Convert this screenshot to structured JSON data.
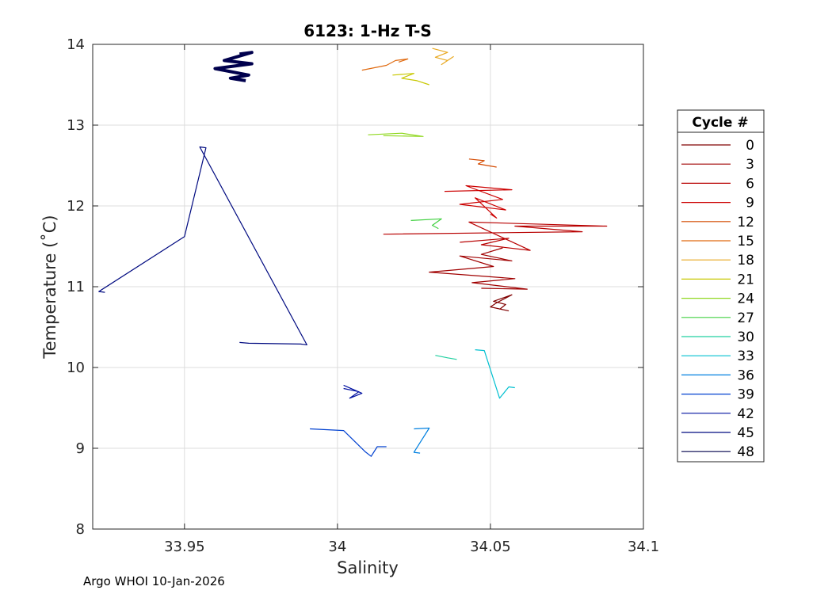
{
  "chart_data": {
    "type": "line",
    "title": "6123: 1-Hz T-S",
    "xlabel": "Salinity",
    "ylabel": "Temperature (˚C)",
    "xlim": [
      33.92,
      34.1
    ],
    "ylim": [
      8,
      14
    ],
    "xticks": [
      33.95,
      34,
      34.05,
      34.1
    ],
    "xtick_labels": [
      "33.95",
      "34",
      "34.05",
      "34.1"
    ],
    "yticks": [
      8,
      9,
      10,
      11,
      12,
      13,
      14
    ],
    "ytick_labels": [
      "8",
      "9",
      "10",
      "11",
      "12",
      "13",
      "14"
    ],
    "grid": true,
    "legend": {
      "title": "Cycle #",
      "placement": "outside-right"
    },
    "series": [
      {
        "name": "0",
        "color": "#800000",
        "points": [
          [
            34.053,
            10.72
          ],
          [
            34.055,
            10.78
          ],
          [
            34.051,
            10.82
          ],
          [
            34.054,
            10.86
          ],
          [
            34.057,
            10.9
          ],
          [
            34.052,
            10.8
          ],
          [
            34.05,
            10.75
          ],
          [
            34.056,
            10.7
          ]
        ]
      },
      {
        "name": "3",
        "color": "#a00000",
        "points": [
          [
            34.047,
            10.98
          ],
          [
            34.062,
            10.97
          ],
          [
            34.044,
            11.05
          ],
          [
            34.058,
            11.1
          ],
          [
            34.03,
            11.18
          ],
          [
            34.051,
            11.25
          ],
          [
            34.04,
            11.38
          ],
          [
            34.057,
            11.32
          ],
          [
            34.047,
            11.4
          ],
          [
            34.054,
            11.48
          ]
        ]
      },
      {
        "name": "6",
        "color": "#b80000",
        "points": [
          [
            34.015,
            11.65
          ],
          [
            34.08,
            11.68
          ],
          [
            34.058,
            11.75
          ],
          [
            34.088,
            11.75
          ],
          [
            34.043,
            11.8
          ],
          [
            34.063,
            11.45
          ],
          [
            34.047,
            11.52
          ],
          [
            34.056,
            11.6
          ],
          [
            34.04,
            11.55
          ]
        ]
      },
      {
        "name": "9",
        "color": "#cc0000",
        "points": [
          [
            34.035,
            12.18
          ],
          [
            34.057,
            12.2
          ],
          [
            34.042,
            12.25
          ],
          [
            34.054,
            12.08
          ],
          [
            34.04,
            12.02
          ],
          [
            34.055,
            11.95
          ],
          [
            34.045,
            12.1
          ],
          [
            34.052,
            11.85
          ],
          [
            34.05,
            11.9
          ]
        ]
      },
      {
        "name": "12",
        "color": "#d44a00",
        "points": [
          [
            34.043,
            12.58
          ],
          [
            34.048,
            12.56
          ],
          [
            34.046,
            12.52
          ],
          [
            34.052,
            12.48
          ]
        ]
      },
      {
        "name": "15",
        "color": "#e06a10",
        "points": [
          [
            34.008,
            13.68
          ],
          [
            34.016,
            13.74
          ],
          [
            34.019,
            13.8
          ],
          [
            34.023,
            13.82
          ],
          [
            34.02,
            13.78
          ]
        ]
      },
      {
        "name": "18",
        "color": "#e8a820",
        "points": [
          [
            34.031,
            13.95
          ],
          [
            34.036,
            13.9
          ],
          [
            34.032,
            13.84
          ],
          [
            34.036,
            13.8
          ],
          [
            34.034,
            13.75
          ],
          [
            34.038,
            13.85
          ]
        ]
      },
      {
        "name": "21",
        "color": "#c8c800",
        "points": [
          [
            34.018,
            13.62
          ],
          [
            34.025,
            13.64
          ],
          [
            34.021,
            13.58
          ],
          [
            34.026,
            13.55
          ],
          [
            34.03,
            13.5
          ]
        ]
      },
      {
        "name": "24",
        "color": "#90d820",
        "points": [
          [
            34.01,
            12.88
          ],
          [
            34.021,
            12.9
          ],
          [
            34.028,
            12.86
          ],
          [
            34.015,
            12.87
          ]
        ]
      },
      {
        "name": "27",
        "color": "#40d040",
        "points": [
          [
            34.024,
            11.82
          ],
          [
            34.034,
            11.84
          ],
          [
            34.031,
            11.76
          ],
          [
            34.033,
            11.72
          ]
        ]
      },
      {
        "name": "30",
        "color": "#20d0a0",
        "points": [
          [
            34.032,
            10.15
          ],
          [
            34.036,
            10.12
          ],
          [
            34.039,
            10.1
          ]
        ]
      },
      {
        "name": "33",
        "color": "#00c0d0",
        "points": [
          [
            34.045,
            10.22
          ],
          [
            34.048,
            10.21
          ],
          [
            34.053,
            9.62
          ],
          [
            34.056,
            9.76
          ],
          [
            34.058,
            9.75
          ]
        ]
      },
      {
        "name": "36",
        "color": "#0080e0",
        "points": [
          [
            34.025,
            9.24
          ],
          [
            34.03,
            9.25
          ],
          [
            34.025,
            8.95
          ],
          [
            34.027,
            8.94
          ]
        ]
      },
      {
        "name": "39",
        "color": "#0040d0",
        "points": [
          [
            33.991,
            9.24
          ],
          [
            34.002,
            9.22
          ],
          [
            34.009,
            8.96
          ],
          [
            34.011,
            8.9
          ],
          [
            34.013,
            9.02
          ],
          [
            34.016,
            9.02
          ]
        ]
      },
      {
        "name": "42",
        "color": "#0010a0",
        "points": [
          [
            34.002,
            9.74
          ],
          [
            34.007,
            9.7
          ],
          [
            34.004,
            9.62
          ],
          [
            34.008,
            9.68
          ],
          [
            34.002,
            9.78
          ]
        ]
      },
      {
        "name": "45",
        "color": "#000a80",
        "points": [
          [
            33.968,
            10.31
          ],
          [
            33.971,
            10.3
          ],
          [
            33.988,
            10.29
          ],
          [
            33.99,
            10.28
          ],
          [
            33.955,
            12.73
          ],
          [
            33.957,
            12.72
          ],
          [
            33.95,
            11.62
          ],
          [
            33.922,
            10.94
          ],
          [
            33.924,
            10.93
          ]
        ]
      },
      {
        "name": "48",
        "color": "#00004d",
        "points": [
          [
            33.968,
            13.88
          ],
          [
            33.972,
            13.9
          ],
          [
            33.963,
            13.8
          ],
          [
            33.972,
            13.76
          ],
          [
            33.96,
            13.7
          ],
          [
            33.971,
            13.62
          ],
          [
            33.965,
            13.58
          ],
          [
            33.97,
            13.55
          ]
        ]
      }
    ]
  },
  "footer": {
    "text": "Argo WHOI 10-Jan-2026"
  }
}
